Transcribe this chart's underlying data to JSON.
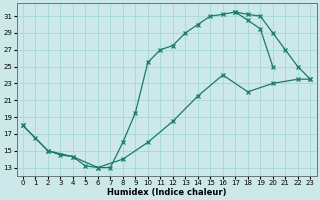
{
  "xlabel": "Humidex (Indice chaleur)",
  "bg_color": "#cce8e8",
  "grid_color": "#aad8d8",
  "line_color": "#1a7a6e",
  "xlim": [
    -0.5,
    23.5
  ],
  "ylim": [
    12.0,
    32.5
  ],
  "yticks": [
    13,
    15,
    17,
    19,
    21,
    23,
    25,
    27,
    29,
    31
  ],
  "xticks": [
    0,
    1,
    2,
    3,
    4,
    5,
    6,
    7,
    8,
    9,
    10,
    11,
    12,
    13,
    14,
    15,
    16,
    17,
    18,
    19,
    20,
    21,
    22,
    23
  ],
  "curve1_x": [
    0,
    1,
    2,
    3,
    4,
    5,
    6,
    7,
    8,
    9,
    10,
    11,
    12,
    13,
    14,
    15,
    16,
    17,
    18,
    19,
    20
  ],
  "curve1_y": [
    18,
    16.5,
    15,
    14.5,
    14.3,
    13.2,
    13.0,
    13.0,
    16.0,
    19.5,
    25.5,
    27.0,
    27.5,
    29.0,
    30.0,
    31.0,
    31.2,
    31.5,
    30.5,
    29.5,
    25.0
  ],
  "curve2_x": [
    0,
    2,
    4,
    6,
    8,
    10,
    12,
    14,
    16,
    18,
    20,
    22,
    23
  ],
  "curve2_y": [
    18,
    15,
    14.3,
    13.0,
    14.0,
    16.0,
    18.5,
    21.5,
    24.0,
    22.0,
    23.0,
    23.5,
    23.5
  ],
  "curve3_x": [
    17,
    18,
    19,
    20,
    21,
    22,
    23
  ],
  "curve3_y": [
    31.5,
    31.2,
    31.0,
    29.0,
    27.0,
    25.0,
    23.5
  ]
}
